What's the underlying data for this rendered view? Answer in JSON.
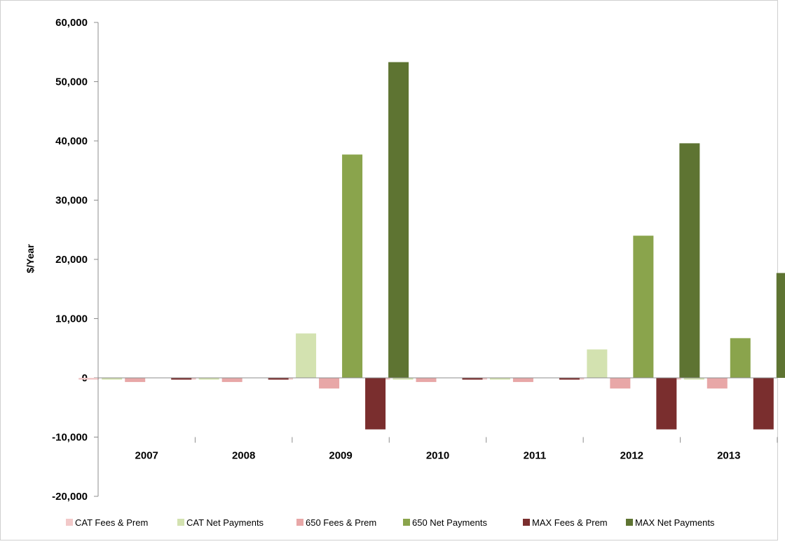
{
  "chart_data": {
    "type": "bar",
    "title": "",
    "xlabel": "",
    "ylabel": "$/Year",
    "ylim": [
      -20000,
      60000
    ],
    "yticks": [
      60000,
      50000,
      40000,
      30000,
      20000,
      10000,
      0,
      -10000,
      -20000
    ],
    "ytick_labels": [
      "60,000",
      "50,000",
      "40,000",
      "30,000",
      "20,000",
      "10,000",
      "0",
      "-10,000",
      "-20,000"
    ],
    "categories": [
      "2007",
      "2008",
      "2009",
      "2010",
      "2011",
      "2012",
      "2013"
    ],
    "legend_position": "bottom",
    "grid": false,
    "series": [
      {
        "name": "CAT Fees & Prem",
        "color": "#f2c9c9",
        "values": [
          -300,
          -300,
          -300,
          -300,
          -300,
          -300,
          -300
        ]
      },
      {
        "name": "CAT Net Payments",
        "color": "#d3e2b0",
        "values": [
          -300,
          -300,
          7500,
          -300,
          -300,
          4800,
          -300
        ]
      },
      {
        "name": "650 Fees & Prem",
        "color": "#e8a7a7",
        "values": [
          -700,
          -700,
          -1800,
          -700,
          -700,
          -1800,
          -1800
        ]
      },
      {
        "name": "650 Net Payments",
        "color": "#8aa44c",
        "values": [
          0,
          0,
          37700,
          0,
          0,
          24000,
          6700
        ]
      },
      {
        "name": "MAX Fees & Prem",
        "color": "#7a2e2e",
        "values": [
          -300,
          -300,
          -8700,
          -300,
          -300,
          -8700,
          -8700
        ]
      },
      {
        "name": "MAX Net Payments",
        "color": "#5e7432",
        "values": [
          0,
          0,
          53300,
          0,
          0,
          39600,
          17700
        ]
      }
    ]
  }
}
